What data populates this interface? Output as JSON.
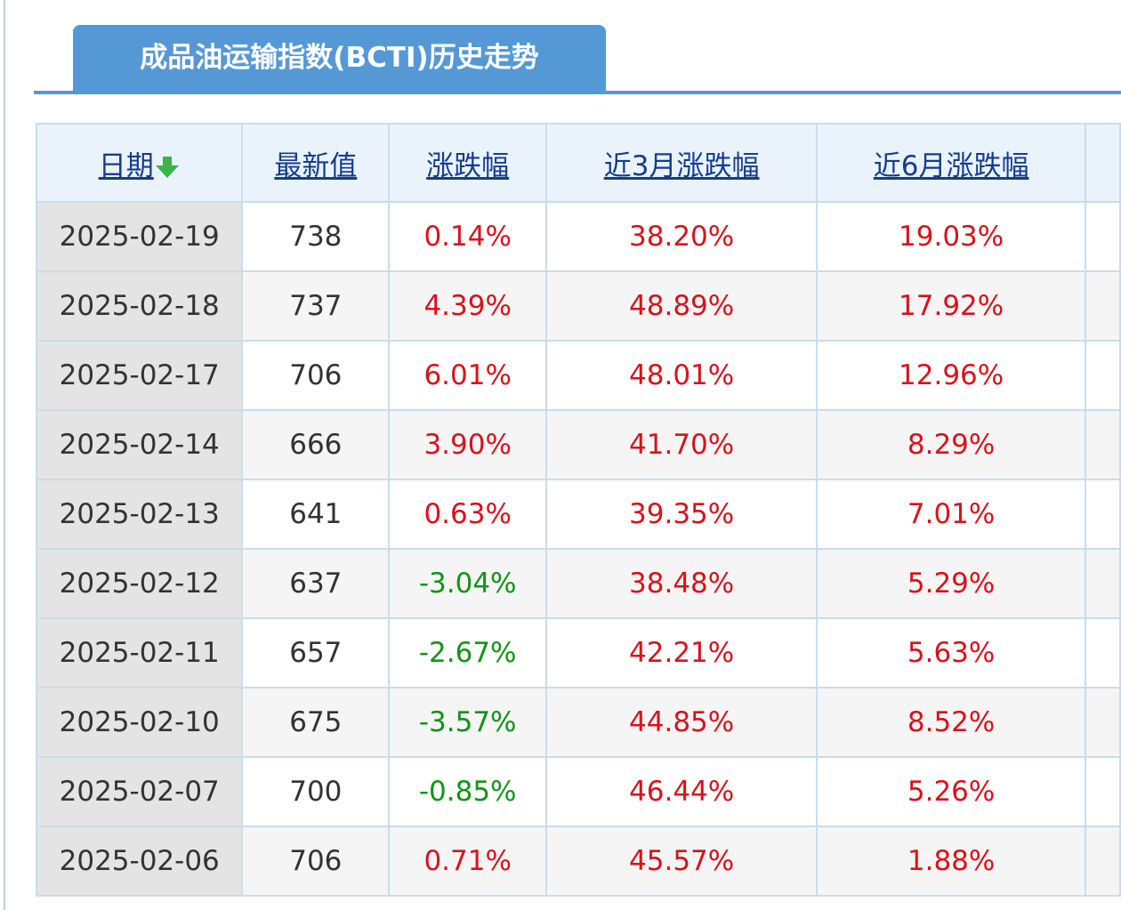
{
  "tab_title": "成品油运输指数(BCTI)历史走势",
  "table": {
    "header": [
      "日期",
      "最新值",
      "涨跌幅",
      "近3月涨跌幅",
      "近6月涨跌幅"
    ],
    "rows": [
      [
        "2025-02-19",
        "738",
        "0.14%",
        "38.20%",
        "19.03%"
      ],
      [
        "2025-02-18",
        "737",
        "4.39%",
        "48.89%",
        "17.92%"
      ],
      [
        "2025-02-17",
        "706",
        "6.01%",
        "48.01%",
        "12.96%"
      ],
      [
        "2025-02-14",
        "666",
        "3.90%",
        "41.70%",
        "8.29%"
      ],
      [
        "2025-02-13",
        "641",
        "0.63%",
        "39.35%",
        "7.01%"
      ],
      [
        "2025-02-12",
        "637",
        "-3.04%",
        "38.48%",
        "5.29%"
      ],
      [
        "2025-02-11",
        "657",
        "-2.67%",
        "42.21%",
        "5.63%"
      ],
      [
        "2025-02-10",
        "675",
        "-3.57%",
        "44.85%",
        "8.52%"
      ],
      [
        "2025-02-07",
        "700",
        "-0.85%",
        "46.44%",
        "5.26%"
      ],
      [
        "2025-02-06",
        "706",
        "0.71%",
        "45.57%",
        "1.88%"
      ]
    ]
  }
}
